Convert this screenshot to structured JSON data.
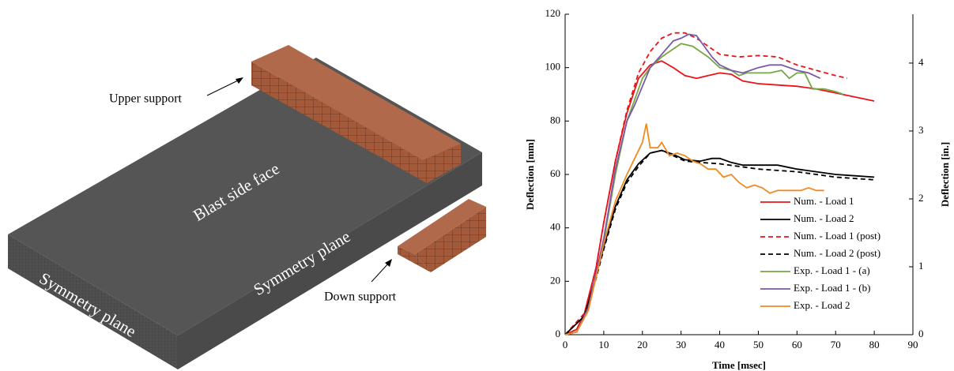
{
  "model": {
    "labels": {
      "upper": "Upper support",
      "blast": "Blast side face",
      "sym_left": "Symmetry plane",
      "sym_right": "Symmetry plane",
      "down": "Down support"
    }
  },
  "chart_data": {
    "type": "line",
    "xlabel": "Time  [msec]",
    "ylabel": "Deflection  [mm]",
    "y2label": "Deflection [in.]",
    "xlim": [
      0,
      90
    ],
    "xticks": [
      0,
      10,
      20,
      30,
      40,
      50,
      60,
      70,
      80,
      90
    ],
    "ylim": [
      0,
      120
    ],
    "yticks": [
      0,
      20,
      40,
      60,
      80,
      100,
      120
    ],
    "y2lim": [
      0,
      4.72
    ],
    "y2ticks": [
      0,
      1,
      2,
      3,
      4
    ],
    "legend": "lower right",
    "series": [
      {
        "name": "Num. - Load 1",
        "color": "#e8141a",
        "linestyle": "solid",
        "x": [
          0,
          3,
          5,
          8,
          10,
          13,
          16,
          19,
          22,
          25,
          28,
          31,
          34,
          37,
          40,
          43,
          46,
          50,
          55,
          60,
          65,
          70,
          75,
          80
        ],
        "values": [
          0,
          2,
          8,
          25,
          42,
          65,
          83,
          96,
          101,
          102.5,
          100,
          97,
          96,
          97,
          98,
          97.5,
          95,
          94,
          93.5,
          93,
          92,
          90.5,
          89,
          87.5
        ]
      },
      {
        "name": "Num. - Load 2",
        "color": "#000000",
        "linestyle": "solid",
        "x": [
          0,
          5,
          8,
          10,
          13,
          16,
          19,
          22,
          25,
          28,
          31,
          35,
          38,
          40,
          43,
          46,
          50,
          55,
          60,
          65,
          70,
          75,
          80
        ],
        "values": [
          0,
          7,
          22,
          33,
          48,
          58,
          64,
          68,
          69,
          67.5,
          65.5,
          65,
          66,
          66,
          64.5,
          63.5,
          63.5,
          63.5,
          62,
          61,
          60,
          59.5,
          59
        ]
      },
      {
        "name": "Num. - Load 1 (post)",
        "color": "#e8141a",
        "linestyle": "dashed",
        "x": [
          0,
          5,
          8,
          10,
          13,
          16,
          19,
          22,
          25,
          28,
          31,
          34,
          37,
          40,
          45,
          50,
          55,
          60,
          65,
          70,
          73
        ],
        "values": [
          0,
          8,
          25,
          42,
          65,
          84,
          98,
          106,
          111,
          113,
          113,
          111,
          108,
          105,
          104,
          104.5,
          104,
          101,
          99,
          97,
          96
        ]
      },
      {
        "name": "Num. - Load 2 (post)",
        "color": "#000000",
        "linestyle": "dashed",
        "x": [
          0,
          5,
          8,
          10,
          13,
          16,
          19,
          22,
          25,
          28,
          31,
          35,
          40,
          45,
          50,
          55,
          60,
          65,
          70,
          75,
          80
        ],
        "values": [
          0,
          7,
          21,
          32,
          47,
          57,
          63,
          68,
          69,
          67,
          65,
          64.5,
          64,
          63,
          62,
          61.5,
          61,
          60,
          59,
          58.5,
          58
        ]
      },
      {
        "name": "Exp. - Load 1 - (a)",
        "color": "#77a645",
        "linestyle": "solid",
        "x": [
          0,
          3,
          6,
          10,
          13,
          16,
          18,
          20,
          22,
          25,
          28,
          30,
          33,
          35,
          37,
          40,
          43,
          45,
          47,
          50,
          53,
          56,
          58,
          60,
          62,
          64,
          67,
          70,
          72
        ],
        "values": [
          0,
          1,
          10,
          35,
          60,
          80,
          88,
          96,
          100,
          104,
          107,
          109,
          108,
          106,
          104,
          100,
          99,
          97,
          98,
          98,
          98,
          99,
          96,
          98,
          98,
          92,
          92,
          91,
          90
        ]
      },
      {
        "name": "Exp. - Load 1 - (b)",
        "color": "#7a5aa8",
        "linestyle": "solid",
        "x": [
          0,
          3,
          6,
          10,
          13,
          16,
          18,
          20,
          22,
          25,
          28,
          30,
          32,
          34,
          36,
          38,
          40,
          43,
          46,
          50,
          53,
          56,
          60,
          63,
          66
        ],
        "values": [
          0,
          1,
          10,
          36,
          62,
          80,
          86,
          93,
          100,
          105,
          110,
          111,
          112.5,
          112,
          108,
          104,
          101,
          99,
          98,
          100,
          101,
          101,
          99,
          98,
          96
        ]
      },
      {
        "name": "Exp. - Load 2",
        "color": "#f08a24",
        "linestyle": "solid",
        "x": [
          0,
          3,
          6,
          10,
          13,
          16,
          18,
          20,
          21,
          22,
          24,
          25,
          27,
          29,
          31,
          33,
          35,
          37,
          39,
          41,
          43,
          45,
          47,
          49,
          51,
          53,
          55,
          57,
          59,
          61,
          63,
          65,
          67
        ],
        "values": [
          0,
          1,
          9,
          34,
          50,
          60,
          66,
          72,
          79,
          70,
          70,
          72,
          67,
          68,
          67,
          65,
          64,
          62,
          62,
          59,
          60,
          57,
          55,
          56,
          55,
          53,
          54,
          54,
          54,
          54,
          55,
          54,
          54
        ]
      }
    ]
  }
}
